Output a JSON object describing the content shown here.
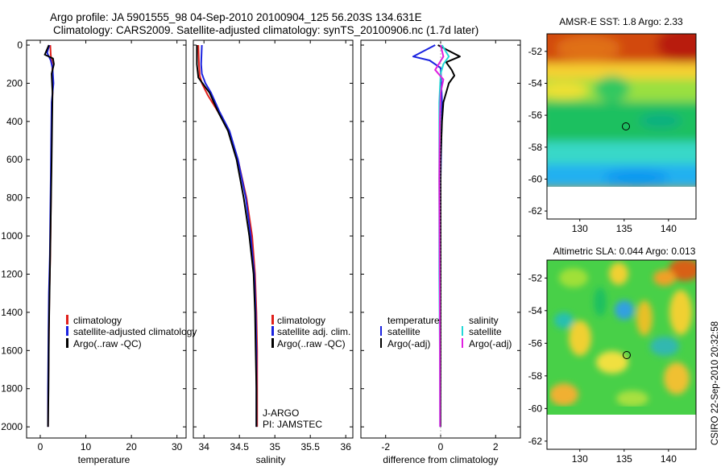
{
  "header": {
    "line1": "Argo profile: JA 5901555_98 04-Sep-2010 20100904_125 56.203S 134.631E",
    "line2": "Climatology: CARS2009. Satellite-adjusted climatology: synTS_20100906.nc (1.7d later)"
  },
  "footer_stamp": "CSIRO 22-Sep-2010 20:32:58",
  "colors": {
    "climatology": "#e0201b",
    "satellite": "#1a22e0",
    "argo": "#000000",
    "sat_salinity": "#22d8d8",
    "argo_salinity": "#e020e0"
  },
  "chart_data": [
    {
      "type": "line",
      "id": "temperature",
      "xlabel": "temperature",
      "xlim": [
        -3,
        32
      ],
      "ylim": [
        2050,
        0
      ],
      "xticks": [
        0,
        10,
        20,
        30
      ],
      "yticks": [
        0,
        200,
        400,
        600,
        800,
        1000,
        1200,
        1400,
        1600,
        1800,
        2000
      ],
      "legend": {
        "position": "middle-right",
        "items": [
          "climatology",
          "satellite-adjusted climatology",
          "Argo(..raw -QC)"
        ]
      },
      "series": [
        {
          "name": "climatology",
          "x": [
            2.2,
            2.3,
            2.6,
            2.8,
            2.6,
            2.5,
            2.4,
            2.3,
            2.2,
            2.0,
            1.9,
            1.8,
            1.7,
            1.7
          ],
          "y": [
            0,
            50,
            100,
            200,
            300,
            500,
            700,
            900,
            1100,
            1300,
            1500,
            1700,
            1900,
            2000
          ]
        },
        {
          "name": "satellite-adjusted climatology",
          "x": [
            2.0,
            1.5,
            2.3,
            2.7,
            2.9,
            2.5,
            2.4,
            2.3,
            2.2,
            2.1,
            1.9,
            1.8,
            1.7,
            1.7
          ],
          "y": [
            0,
            40,
            80,
            120,
            200,
            300,
            500,
            700,
            900,
            1100,
            1300,
            1500,
            1800,
            2000
          ]
        },
        {
          "name": "Argo(..raw -QC)",
          "x": [
            1.9,
            1.0,
            2.8,
            3.0,
            2.5,
            2.7,
            2.6,
            2.5,
            2.3,
            2.1,
            1.9,
            1.8,
            1.7
          ],
          "y": [
            0,
            50,
            70,
            100,
            150,
            250,
            400,
            600,
            900,
            1200,
            1500,
            1800,
            2000
          ]
        }
      ]
    },
    {
      "type": "line",
      "id": "salinity",
      "xlabel": "salinity",
      "xlim": [
        33.85,
        36.1
      ],
      "ylim": [
        2050,
        0
      ],
      "xticks": [
        34,
        34.5,
        35,
        35.5,
        36
      ],
      "legend": {
        "position": "middle-right",
        "items": [
          "climatology",
          "satellite adj. clim.",
          "Argo(..raw -QC)"
        ]
      },
      "annotation": [
        "J-ARGO",
        "PI: JAMSTEC"
      ],
      "series": [
        {
          "name": "climatology",
          "x": [
            33.92,
            33.93,
            33.94,
            33.97,
            34.05,
            34.2,
            34.35,
            34.48,
            34.6,
            34.68,
            34.72,
            34.74,
            34.75,
            34.75,
            34.75
          ],
          "y": [
            0,
            100,
            160,
            200,
            260,
            350,
            450,
            600,
            800,
            1000,
            1200,
            1400,
            1600,
            1800,
            2000
          ]
        },
        {
          "name": "satellite adj. clim.",
          "x": [
            33.97,
            33.96,
            33.97,
            34.02,
            34.1,
            34.22,
            34.36,
            34.48,
            34.59,
            34.66,
            34.71,
            34.73,
            34.74,
            34.74,
            34.74
          ],
          "y": [
            0,
            100,
            150,
            200,
            250,
            350,
            450,
            600,
            800,
            1000,
            1200,
            1400,
            1600,
            1800,
            2000
          ]
        },
        {
          "name": "Argo(..raw -QC)",
          "x": [
            33.9,
            33.9,
            33.92,
            33.98,
            34.08,
            34.2,
            34.34,
            34.46,
            34.56,
            34.64,
            34.7,
            34.72,
            34.73,
            34.74,
            34.74
          ],
          "y": [
            0,
            100,
            170,
            200,
            250,
            350,
            450,
            600,
            800,
            1000,
            1200,
            1400,
            1600,
            1800,
            2000
          ]
        }
      ]
    },
    {
      "type": "line",
      "id": "difference",
      "xlabel": "difference from climatology",
      "xlim": [
        -2.9,
        2.9
      ],
      "ylim": [
        2050,
        0
      ],
      "xticks": [
        -2,
        0,
        2
      ],
      "legend": {
        "position": "middle",
        "groups": [
          {
            "title": "temperature",
            "items": [
              "satellite",
              "Argo(-adj)"
            ]
          },
          {
            "title": "salinity",
            "items": [
              "satellite",
              "Argo(-adj)"
            ]
          }
        ]
      },
      "series": [
        {
          "name": "temperature satellite",
          "x": [
            -0.2,
            -0.6,
            -1.0,
            -0.4,
            0.0,
            0.05,
            0.0,
            0.0,
            0.0,
            0.0
          ],
          "y": [
            0,
            30,
            60,
            80,
            120,
            300,
            700,
            1100,
            1600,
            2000
          ]
        },
        {
          "name": "temperature Argo(-adj)",
          "x": [
            -0.1,
            0.3,
            0.7,
            0.2,
            0.4,
            0.5,
            0.3,
            0.1,
            0.05,
            0.0,
            0.0,
            0.0
          ],
          "y": [
            0,
            30,
            60,
            90,
            130,
            160,
            200,
            300,
            400,
            600,
            1000,
            2000
          ]
        },
        {
          "name": "salinity satellite",
          "x": [
            0.05,
            0.3,
            0.1,
            0.0,
            -0.05,
            -0.05,
            -0.05,
            -0.05,
            -0.03,
            -0.02
          ],
          "y": [
            0,
            60,
            100,
            150,
            300,
            500,
            800,
            1200,
            1600,
            2000
          ]
        },
        {
          "name": "salinity Argo(-adj)",
          "x": [
            0.0,
            0.1,
            -0.2,
            0.1,
            0.0,
            -0.03,
            -0.05,
            -0.03,
            -0.02
          ],
          "y": [
            0,
            60,
            130,
            180,
            250,
            400,
            700,
            1300,
            2000
          ]
        }
      ]
    },
    {
      "type": "heatmap",
      "id": "sst-map",
      "title": "AMSR-E SST: 1.8 Argo: 2.33",
      "xticks": [
        130,
        135,
        140
      ],
      "yticks": [
        -52,
        -54,
        -56,
        -58,
        -60,
        -62
      ],
      "profile_location": {
        "lon": 134.631,
        "lat": -56.203
      },
      "no_data_below_lat": -60
    },
    {
      "type": "heatmap",
      "id": "sla-map",
      "title": "Altimetric SLA: 0.044 Argo: 0.013",
      "xticks": [
        130,
        135,
        140
      ],
      "yticks": [
        -52,
        -54,
        -56,
        -58,
        -60,
        -62
      ],
      "profile_location": {
        "lon": 134.631,
        "lat": -56.203
      },
      "no_data_below_lat": -60
    }
  ]
}
